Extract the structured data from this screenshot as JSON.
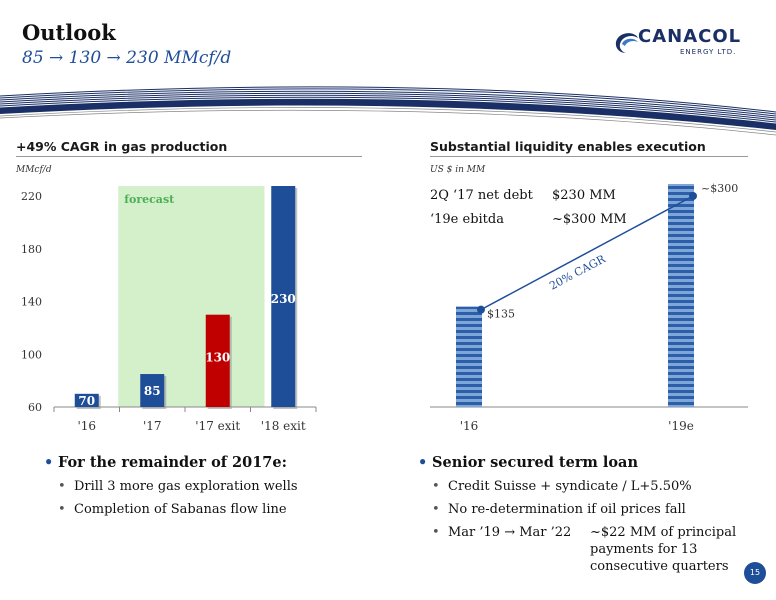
{
  "header": {
    "title": "Outlook",
    "subtitle": "85 → 130 → 230 MMcf/d"
  },
  "logo": {
    "name": "CANACOL",
    "tagline": "ENERGY LTD."
  },
  "left_panel": {
    "heading": "+49% CAGR in gas production",
    "unit": "MMcf/d",
    "forecast_label": "forecast",
    "bullets": {
      "main": "For the remainder of 2017e:",
      "sub": [
        "Drill 3 more gas exploration wells",
        "Completion of Sabanas flow line"
      ]
    }
  },
  "right_panel": {
    "heading": "Substantial liquidity enables execution",
    "unit": "US $ in MM",
    "net_debt_label": "2Q ‘17 net debt",
    "net_debt_value": "$230 MM",
    "ebitda_label": "‘19e ebitda",
    "ebitda_value": "~$300 MM",
    "cagr_label": "20% CAGR",
    "bullets": {
      "main": "Senior secured term loan",
      "sub": [
        "Credit Suisse + syndicate / L+5.50%",
        "No re-determination if oil prices fall"
      ],
      "schedule_label": "Mar ’19 → Mar ’22",
      "schedule_text_1": "~$22 MM of principal",
      "schedule_text_2": "payments for 13",
      "schedule_text_3": "consecutive quarters"
    }
  },
  "page_number": "15",
  "colors": {
    "blue": "#1f4e99",
    "red": "#c00000",
    "forecast_bg": "#d3f0cb",
    "forecast_text": "#4caf50"
  },
  "chart_data": [
    {
      "type": "bar",
      "categories": [
        "'16",
        "'17",
        "'17 exit",
        "'18 exit"
      ],
      "values": [
        70,
        85,
        130,
        230
      ],
      "data_labels": [
        "70",
        "85",
        "130",
        "230"
      ],
      "bar_colors": [
        "#1f4e99",
        "#1f4e99",
        "#c00000",
        "#1f4e99"
      ],
      "ylim": [
        60,
        230
      ],
      "yticks": [
        60,
        100,
        140,
        180,
        220
      ],
      "ytick_labels": [
        "60",
        "100",
        "140",
        "180",
        "220"
      ],
      "ylabel": "MMcf/d",
      "forecast_categories": [
        "'17",
        "'17 exit"
      ]
    },
    {
      "type": "bar",
      "categories": [
        "'16",
        "'19e"
      ],
      "values": [
        135,
        300
      ],
      "data_labels": [
        "$135",
        "~$300"
      ],
      "ylim": [
        0,
        300
      ],
      "trend_label": "20% CAGR"
    }
  ]
}
